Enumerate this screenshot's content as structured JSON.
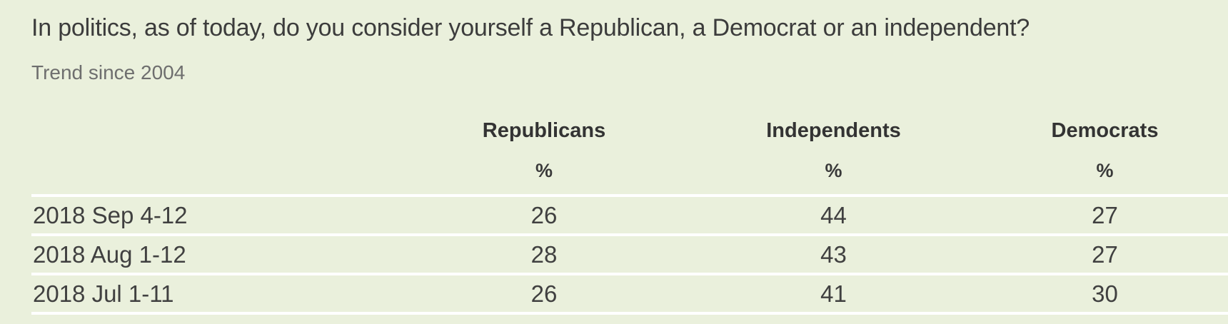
{
  "question": "In politics, as of today, do you consider yourself a Republican, a Democrat or an independent?",
  "subtitle": "Trend since 2004",
  "table": {
    "columns": [
      "Republicans",
      "Independents",
      "Democrats"
    ],
    "unit_label": "%",
    "rows": [
      {
        "date": "2018 Sep 4-12",
        "values": [
          "26",
          "44",
          "27"
        ]
      },
      {
        "date": "2018 Aug 1-12",
        "values": [
          "28",
          "43",
          "27"
        ]
      },
      {
        "date": "2018 Jul 1-11",
        "values": [
          "26",
          "41",
          "30"
        ]
      }
    ]
  },
  "colors": {
    "background": "#eaf0dc",
    "divider": "#ffffff",
    "title_text": "#3c3c3c",
    "subtitle_text": "#6e6e6e",
    "header_text": "#333333",
    "data_text": "#404040"
  },
  "chart_data": {
    "type": "table",
    "title": "In politics, as of today, do you consider yourself a Republican, a Democrat or an independent?",
    "subtitle": "Trend since 2004",
    "unit": "%",
    "categories": [
      "2018 Sep 4-12",
      "2018 Aug 1-12",
      "2018 Jul 1-11"
    ],
    "series": [
      {
        "name": "Republicans",
        "values": [
          26,
          28,
          26
        ]
      },
      {
        "name": "Independents",
        "values": [
          44,
          43,
          41
        ]
      },
      {
        "name": "Democrats",
        "values": [
          27,
          27,
          30
        ]
      }
    ]
  }
}
